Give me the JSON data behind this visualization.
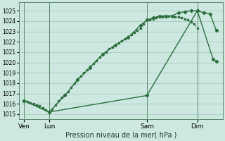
{
  "xlabel": "Pression niveau de la mer( hPa )",
  "bg_color": "#cce8e0",
  "grid_color": "#aaccbb",
  "line_color": "#2d6e3e",
  "ylim": [
    1014.5,
    1025.8
  ],
  "yticks": [
    1015,
    1016,
    1017,
    1018,
    1019,
    1020,
    1021,
    1022,
    1023,
    1024,
    1025
  ],
  "xlim": [
    -0.3,
    32
  ],
  "x_ticks_pos": [
    0.5,
    4.5,
    20,
    28
  ],
  "x_tick_labels": [
    "Ven",
    "Lun",
    "Sam",
    "Dim"
  ],
  "x_vlines": [
    0.5,
    4.5,
    20,
    28
  ],
  "line1_x": [
    0.5,
    1,
    1.5,
    2,
    2.5,
    3,
    3.5,
    4,
    4.5,
    5,
    5.5,
    6,
    6.5,
    7,
    7.5,
    8,
    8.5,
    9,
    9.5,
    10,
    10.5,
    11,
    11.5,
    12,
    12.5,
    13,
    13.5,
    14,
    14.5,
    15,
    15.5,
    16,
    16.5,
    17,
    17.5,
    18,
    18.5,
    19,
    19.5,
    20,
    20.5,
    21,
    21.5,
    22,
    22.5,
    23,
    23.5,
    24,
    24.5,
    25,
    25.5,
    26,
    26.5,
    27,
    27.5,
    28
  ],
  "line1_y": [
    1016.3,
    1016.2,
    1016.1,
    1016.0,
    1015.9,
    1015.8,
    1015.6,
    1015.4,
    1015.2,
    1015.5,
    1015.9,
    1016.3,
    1016.6,
    1016.9,
    1017.2,
    1017.6,
    1018.0,
    1018.4,
    1018.7,
    1019.0,
    1019.3,
    1019.6,
    1019.9,
    1020.2,
    1020.5,
    1020.8,
    1021.0,
    1021.3,
    1021.5,
    1021.7,
    1021.9,
    1022.1,
    1022.3,
    1022.5,
    1022.7,
    1022.9,
    1023.1,
    1023.3,
    1023.7,
    1024.1,
    1024.1,
    1024.2,
    1024.3,
    1024.4,
    1024.4,
    1024.4,
    1024.5,
    1024.5,
    1024.4,
    1024.4,
    1024.3,
    1024.2,
    1024.1,
    1023.9,
    1023.7,
    1023.3
  ],
  "line2_x": [
    0.5,
    4.5,
    7,
    9,
    11,
    13,
    15,
    17,
    19,
    20,
    21,
    22,
    23,
    24,
    25,
    26,
    27,
    28,
    29,
    30,
    31
  ],
  "line2_y": [
    1016.3,
    1015.2,
    1016.8,
    1018.3,
    1019.5,
    1020.8,
    1021.7,
    1022.4,
    1023.6,
    1024.1,
    1024.3,
    1024.5,
    1024.5,
    1024.5,
    1024.8,
    1024.9,
    1025.0,
    1025.0,
    1024.8,
    1024.7,
    1023.1
  ],
  "line3_x": [
    0.5,
    4.5,
    20,
    28,
    30.5,
    31
  ],
  "line3_y": [
    1016.3,
    1015.2,
    1016.8,
    1025.0,
    1020.3,
    1020.1
  ]
}
